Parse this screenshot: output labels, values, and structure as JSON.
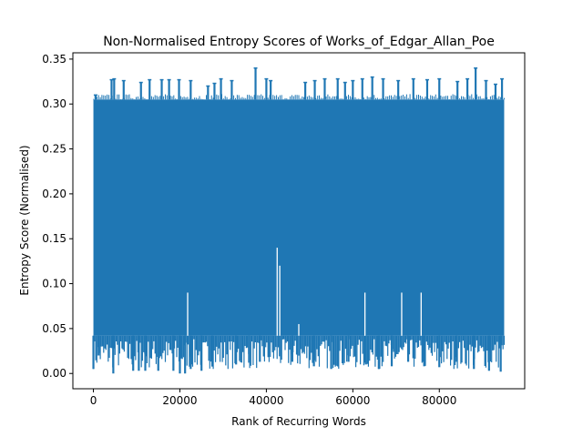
{
  "chart_data": {
    "type": "line",
    "title": "Non-Normalised Entropy Scores of Works_of_Edgar_Allan_Poe",
    "xlabel": "Rank of Recurring Words",
    "ylabel": "Entropy Score (Normalised)",
    "xlim": [
      -4750,
      99750
    ],
    "ylim": [
      -0.017,
      0.357
    ],
    "x_ticks": [
      0,
      20000,
      40000,
      60000,
      80000
    ],
    "x_tick_labels": [
      "0",
      "20000",
      "40000",
      "60000",
      "80000"
    ],
    "y_ticks": [
      0.0,
      0.05,
      0.1,
      0.15,
      0.2,
      0.25,
      0.3,
      0.35
    ],
    "y_tick_labels": [
      "0.00",
      "0.05",
      "0.10",
      "0.15",
      "0.20",
      "0.25",
      "0.30",
      "0.35"
    ],
    "grid": false,
    "series": [
      {
        "color": "#1f77b4",
        "x_range": [
          0,
          95000
        ],
        "dense_band": [
          0.042,
          0.305
        ],
        "low_band": [
          0.005,
          0.042
        ],
        "spikes_high": [
          [
            500,
            0.31
          ],
          [
            4200,
            0.327
          ],
          [
            4800,
            0.328
          ],
          [
            7000,
            0.326
          ],
          [
            11000,
            0.324
          ],
          [
            13000,
            0.327
          ],
          [
            15800,
            0.327
          ],
          [
            17500,
            0.327
          ],
          [
            19800,
            0.327
          ],
          [
            22500,
            0.326
          ],
          [
            26500,
            0.32
          ],
          [
            28000,
            0.323
          ],
          [
            29500,
            0.328
          ],
          [
            32000,
            0.326
          ],
          [
            37500,
            0.34
          ],
          [
            40000,
            0.328
          ],
          [
            41000,
            0.326
          ],
          [
            49000,
            0.324
          ],
          [
            51200,
            0.326
          ],
          [
            53500,
            0.328
          ],
          [
            56500,
            0.328
          ],
          [
            58200,
            0.324
          ],
          [
            60000,
            0.326
          ],
          [
            62200,
            0.328
          ],
          [
            64500,
            0.33
          ],
          [
            67000,
            0.328
          ],
          [
            70500,
            0.326
          ],
          [
            74000,
            0.328
          ],
          [
            77200,
            0.327
          ],
          [
            80000,
            0.328
          ],
          [
            84200,
            0.325
          ],
          [
            86500,
            0.328
          ],
          [
            88400,
            0.34
          ],
          [
            90800,
            0.326
          ],
          [
            93000,
            0.322
          ],
          [
            94500,
            0.328
          ]
        ],
        "spikes_low": [
          [
            0,
            0.005
          ],
          [
            1200,
            0.02
          ],
          [
            4600,
            0.0
          ],
          [
            9200,
            0.003
          ],
          [
            10500,
            0.003
          ],
          [
            12000,
            0.003
          ],
          [
            15000,
            0.003
          ],
          [
            18500,
            0.003
          ],
          [
            20000,
            0.0
          ],
          [
            21200,
            0.0
          ],
          [
            22500,
            0.005
          ],
          [
            25000,
            0.003
          ],
          [
            27500,
            0.008
          ],
          [
            33000,
            0.01
          ],
          [
            36000,
            0.012
          ],
          [
            38500,
            0.013
          ],
          [
            46000,
            0.013
          ],
          [
            51000,
            0.008
          ],
          [
            55000,
            0.005
          ],
          [
            59000,
            0.013
          ],
          [
            63000,
            0.01
          ],
          [
            66000,
            0.005
          ],
          [
            69000,
            0.008
          ],
          [
            72800,
            0.013
          ],
          [
            76500,
            0.008
          ],
          [
            80000,
            0.007
          ],
          [
            84000,
            0.013
          ],
          [
            88000,
            0.005
          ],
          [
            91500,
            0.003
          ],
          [
            94200,
            0.002
          ]
        ],
        "dips_mid": [
          [
            21800,
            0.09
          ],
          [
            42500,
            0.14
          ],
          [
            43100,
            0.12
          ],
          [
            47500,
            0.055
          ],
          [
            62800,
            0.09
          ],
          [
            71300,
            0.09
          ],
          [
            75800,
            0.09
          ]
        ]
      }
    ]
  }
}
